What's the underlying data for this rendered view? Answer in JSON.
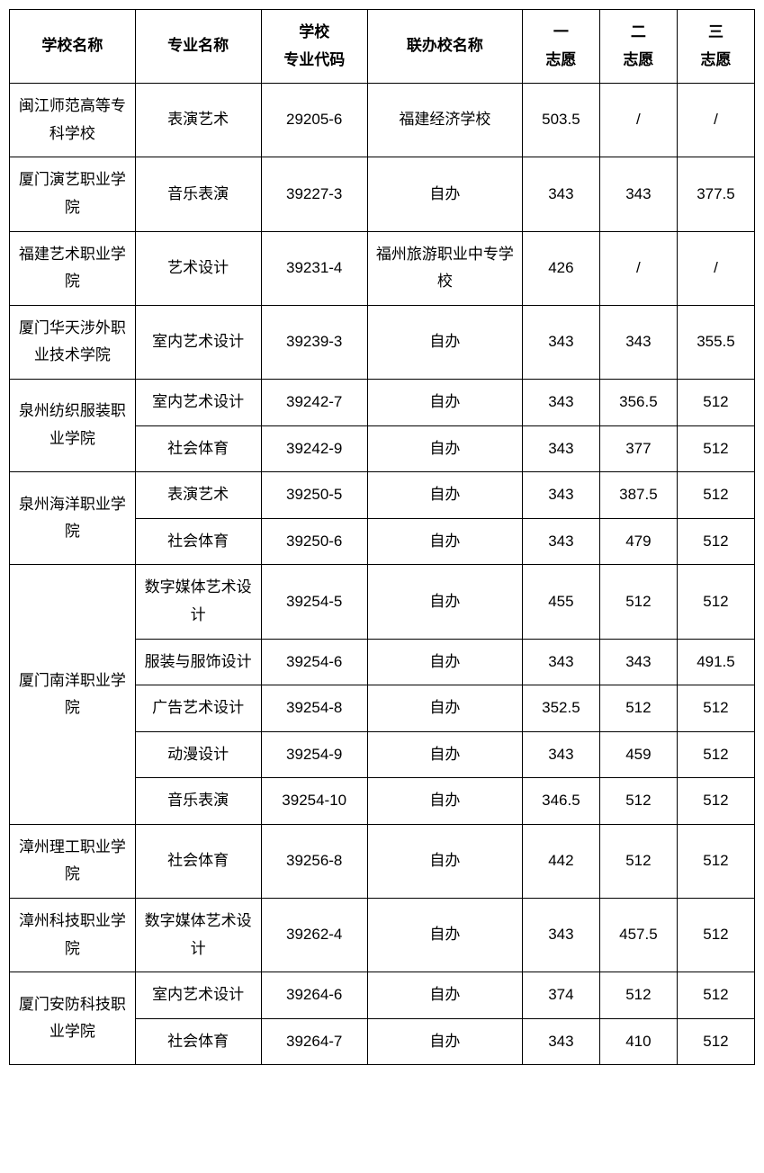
{
  "table": {
    "headers": {
      "school": "学校名称",
      "major": "专业名称",
      "code_line1": "学校",
      "code_line2": "专业代码",
      "partner": "联办校名称",
      "wish1_line1": "一",
      "wish1_line2": "志愿",
      "wish2_line1": "二",
      "wish2_line2": "志愿",
      "wish3_line1": "三",
      "wish3_line2": "志愿"
    },
    "schools": [
      {
        "name": "闽江师范高等专科学校",
        "rows": [
          {
            "major": "表演艺术",
            "code": "29205-6",
            "partner": "福建经济学校",
            "w1": "503.5",
            "w2": "/",
            "w3": "/"
          }
        ]
      },
      {
        "name": "厦门演艺职业学院",
        "rows": [
          {
            "major": "音乐表演",
            "code": "39227-3",
            "partner": "自办",
            "w1": "343",
            "w2": "343",
            "w3": "377.5"
          }
        ]
      },
      {
        "name": "福建艺术职业学院",
        "rows": [
          {
            "major": "艺术设计",
            "code": "39231-4",
            "partner": "福州旅游职业中专学校",
            "w1": "426",
            "w2": "/",
            "w3": "/"
          }
        ]
      },
      {
        "name": "厦门华天涉外职业技术学院",
        "rows": [
          {
            "major": "室内艺术设计",
            "code": "39239-3",
            "partner": "自办",
            "w1": "343",
            "w2": "343",
            "w3": "355.5"
          }
        ]
      },
      {
        "name": "泉州纺织服装职业学院",
        "rows": [
          {
            "major": "室内艺术设计",
            "code": "39242-7",
            "partner": "自办",
            "w1": "343",
            "w2": "356.5",
            "w3": "512"
          },
          {
            "major": "社会体育",
            "code": "39242-9",
            "partner": "自办",
            "w1": "343",
            "w2": "377",
            "w3": "512"
          }
        ]
      },
      {
        "name": "泉州海洋职业学院",
        "rows": [
          {
            "major": "表演艺术",
            "code": "39250-5",
            "partner": "自办",
            "w1": "343",
            "w2": "387.5",
            "w3": "512"
          },
          {
            "major": "社会体育",
            "code": "39250-6",
            "partner": "自办",
            "w1": "343",
            "w2": "479",
            "w3": "512"
          }
        ]
      },
      {
        "name": "厦门南洋职业学院",
        "rows": [
          {
            "major": "数字媒体艺术设计",
            "code": "39254-5",
            "partner": "自办",
            "w1": "455",
            "w2": "512",
            "w3": "512"
          },
          {
            "major": "服装与服饰设计",
            "code": "39254-6",
            "partner": "自办",
            "w1": "343",
            "w2": "343",
            "w3": "491.5"
          },
          {
            "major": "广告艺术设计",
            "code": "39254-8",
            "partner": "自办",
            "w1": "352.5",
            "w2": "512",
            "w3": "512"
          },
          {
            "major": "动漫设计",
            "code": "39254-9",
            "partner": "自办",
            "w1": "343",
            "w2": "459",
            "w3": "512"
          },
          {
            "major": "音乐表演",
            "code": "39254-10",
            "partner": "自办",
            "w1": "346.5",
            "w2": "512",
            "w3": "512"
          }
        ]
      },
      {
        "name": "漳州理工职业学院",
        "rows": [
          {
            "major": "社会体育",
            "code": "39256-8",
            "partner": "自办",
            "w1": "442",
            "w2": "512",
            "w3": "512"
          }
        ]
      },
      {
        "name": "漳州科技职业学院",
        "rows": [
          {
            "major": "数字媒体艺术设计",
            "code": "39262-4",
            "partner": "自办",
            "w1": "343",
            "w2": "457.5",
            "w3": "512"
          }
        ]
      },
      {
        "name": "厦门安防科技职业学院",
        "rows": [
          {
            "major": "室内艺术设计",
            "code": "39264-6",
            "partner": "自办",
            "w1": "374",
            "w2": "512",
            "w3": "512"
          },
          {
            "major": "社会体育",
            "code": "39264-7",
            "partner": "自办",
            "w1": "343",
            "w2": "410",
            "w3": "512"
          }
        ]
      }
    ]
  },
  "styling": {
    "border_color": "#000000",
    "background_color": "#ffffff",
    "text_color": "#000000",
    "font_size": 17,
    "header_font_weight": "bold",
    "column_widths": {
      "school": 130,
      "major": 130,
      "code": 110,
      "partner": 160,
      "score": 80
    }
  }
}
